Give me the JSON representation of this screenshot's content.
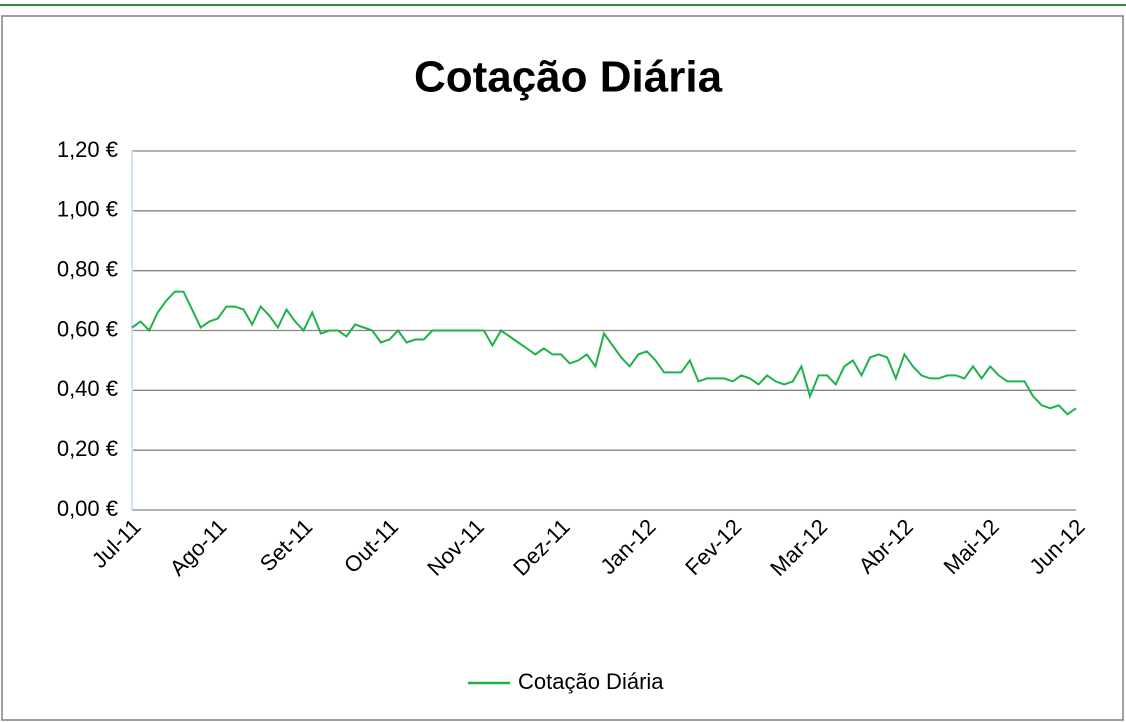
{
  "chart_data": {
    "type": "line",
    "title": "Cotação Diária",
    "categories": [
      "Jul-11",
      null,
      null,
      null,
      null,
      null,
      null,
      null,
      null,
      null,
      "Ago-11",
      null,
      null,
      null,
      null,
      null,
      null,
      null,
      null,
      null,
      "Set-11",
      null,
      null,
      null,
      null,
      null,
      null,
      null,
      null,
      null,
      "Out-11",
      null,
      null,
      null,
      null,
      null,
      null,
      null,
      null,
      null,
      "Nov-11",
      null,
      null,
      null,
      null,
      null,
      null,
      null,
      null,
      null,
      "Dez-11",
      null,
      null,
      null,
      null,
      null,
      null,
      null,
      null,
      null,
      "Jan-12",
      null,
      null,
      null,
      null,
      null,
      null,
      null,
      null,
      null,
      "Fev-12",
      null,
      null,
      null,
      null,
      null,
      null,
      null,
      null,
      null,
      "Mar-12",
      null,
      null,
      null,
      null,
      null,
      null,
      null,
      null,
      null,
      "Abr-12",
      null,
      null,
      null,
      null,
      null,
      null,
      null,
      null,
      null,
      "Mai-12",
      null,
      null,
      null,
      null,
      null,
      null,
      null,
      null,
      null,
      "Jun-12"
    ],
    "series": [
      {
        "name": "Cotação Diária",
        "color": "#1fb24a",
        "values": [
          0.61,
          0.63,
          0.6,
          0.66,
          0.7,
          0.73,
          0.73,
          0.67,
          0.61,
          0.63,
          0.64,
          0.68,
          0.68,
          0.67,
          0.62,
          0.68,
          0.65,
          0.61,
          0.67,
          0.63,
          0.6,
          0.66,
          0.59,
          0.6,
          0.6,
          0.58,
          0.62,
          0.61,
          0.6,
          0.56,
          0.57,
          0.6,
          0.56,
          0.57,
          0.57,
          0.6,
          0.6,
          0.6,
          0.6,
          0.6,
          0.6,
          0.6,
          0.55,
          0.6,
          0.58,
          0.56,
          0.54,
          0.52,
          0.54,
          0.52,
          0.52,
          0.49,
          0.5,
          0.52,
          0.48,
          0.59,
          0.55,
          0.51,
          0.48,
          0.52,
          0.53,
          0.5,
          0.46,
          0.46,
          0.46,
          0.5,
          0.43,
          0.44,
          0.44,
          0.44,
          0.43,
          0.45,
          0.44,
          0.42,
          0.45,
          0.43,
          0.42,
          0.43,
          0.48,
          0.38,
          0.45,
          0.45,
          0.42,
          0.48,
          0.5,
          0.45,
          0.51,
          0.52,
          0.51,
          0.44,
          0.52,
          0.48,
          0.45,
          0.44,
          0.44,
          0.45,
          0.45,
          0.44,
          0.48,
          0.44,
          0.48,
          0.45,
          0.43,
          0.43,
          0.43,
          0.38,
          0.35,
          0.34,
          0.35,
          0.32,
          0.34
        ]
      }
    ],
    "ylim": [
      0,
      1.2
    ],
    "yticks": [
      {
        "value": 0,
        "label": "0,00 €"
      },
      {
        "value": 0.2,
        "label": "0,20 €"
      },
      {
        "value": 0.4,
        "label": "0,40 €"
      },
      {
        "value": 0.6,
        "label": "0,60 €"
      },
      {
        "value": 0.8,
        "label": "0,80 €"
      },
      {
        "value": 1.0,
        "label": "1,00 €"
      },
      {
        "value": 1.2,
        "label": "1,20 €"
      }
    ],
    "grid": true,
    "legend": "bottom"
  }
}
